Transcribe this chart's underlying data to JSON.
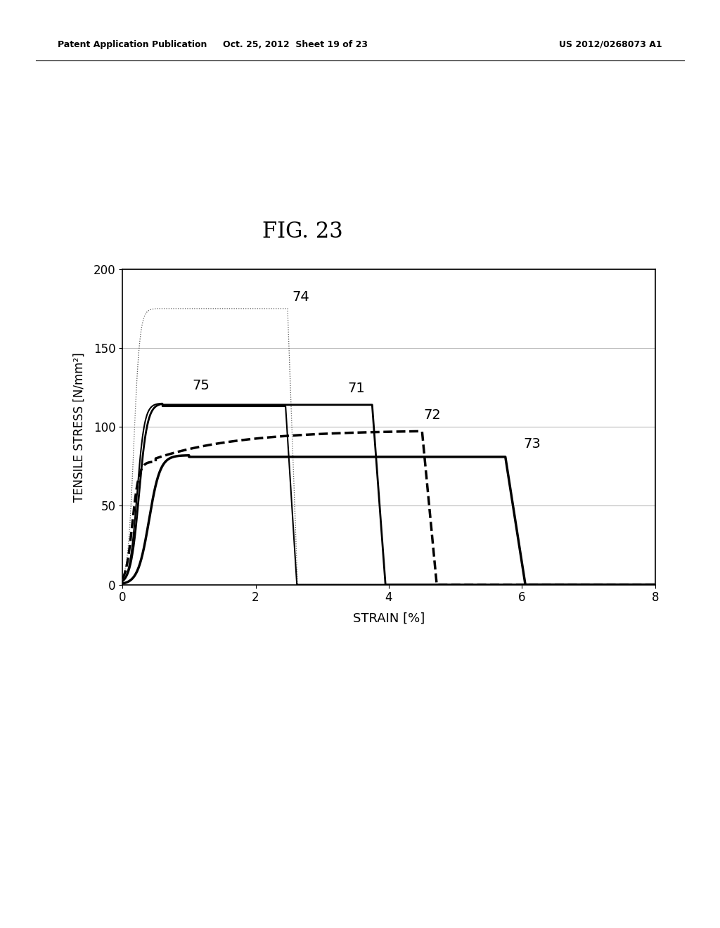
{
  "title": "FIG. 23",
  "xlabel": "STRAIN [%]",
  "ylabel": "TENSILE STRESS [N/mm²]",
  "xlim": [
    0,
    8
  ],
  "ylim": [
    0,
    200
  ],
  "xticks": [
    0,
    2,
    4,
    6,
    8
  ],
  "yticks": [
    0,
    50,
    100,
    150,
    200
  ],
  "header_left": "Patent Application Publication",
  "header_center": "Oct. 25, 2012  Sheet 19 of 23",
  "header_right": "US 2012/0268073 A1",
  "background_color": "#ffffff",
  "grid_color": "#aaaaaa"
}
